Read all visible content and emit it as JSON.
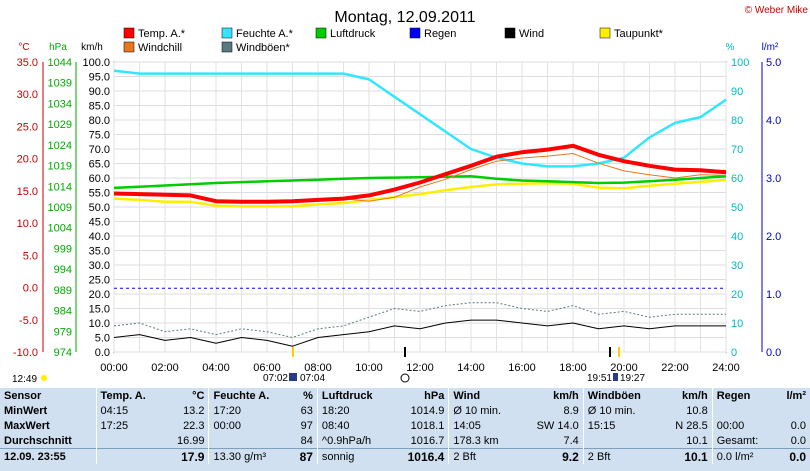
{
  "title": "Montag, 12.09.2011",
  "copyright": "© Weber Mike",
  "legend": [
    {
      "name": "Temp. A.*",
      "color": "#ff0000"
    },
    {
      "name": "Feuchte A.*",
      "color": "#33e6ff"
    },
    {
      "name": "Luftdruck",
      "color": "#00cc00"
    },
    {
      "name": "Regen",
      "color": "#0000ff"
    },
    {
      "name": "Wind",
      "color": "#000000"
    },
    {
      "name": "Taupunkt*",
      "color": "#ffee00"
    },
    {
      "name": "Windchill",
      "color": "#e87820"
    },
    {
      "name": "Windböen*",
      "color": "#5a7a80"
    }
  ],
  "axis_units": {
    "temp": "°C",
    "press": "hPa",
    "wind": "km/h",
    "hum": "%",
    "rain": "l/m²"
  },
  "axis_ticks": {
    "temp": [
      "35.0",
      "30.0",
      "25.0",
      "20.0",
      "15.0",
      "10.0",
      "5.0",
      "0.0",
      "-5.0",
      "-10.0"
    ],
    "press": [
      "1044",
      "1039",
      "1034",
      "1029",
      "1024",
      "1019",
      "1014",
      "1009",
      "1004",
      "999",
      "994",
      "989",
      "984",
      "979",
      "974"
    ],
    "wind": [
      "100.0",
      "95.0",
      "90.0",
      "85.0",
      "80.0",
      "75.0",
      "70.0",
      "65.0",
      "60.0",
      "55.0",
      "50.0",
      "45.0",
      "40.0",
      "35.0",
      "30.0",
      "25.0",
      "20.0",
      "15.0",
      "10.0",
      "5.0",
      "0.0"
    ],
    "hum": [
      "100",
      "90",
      "80",
      "70",
      "60",
      "50",
      "40",
      "30",
      "20",
      "10",
      "0"
    ],
    "rain": [
      "5.0",
      "4.0",
      "3.0",
      "2.0",
      "1.0",
      "0.0"
    ]
  },
  "time_labels": [
    "00:00",
    "02:00",
    "04:00",
    "06:00",
    "08:00",
    "10:00",
    "12:00",
    "14:00",
    "16:00",
    "18:00",
    "20:00",
    "22:00",
    "24:00"
  ],
  "markers": {
    "time_now": "12:49",
    "sunrise": "07:02",
    "sunset": "07:04",
    "other1": "19:51",
    "other2": "19:27"
  },
  "chart_data": {
    "type": "line",
    "title": "Montag, 12.09.2011",
    "x_hours": [
      0,
      1,
      2,
      3,
      4,
      5,
      6,
      7,
      8,
      9,
      10,
      11,
      12,
      13,
      14,
      15,
      16,
      17,
      18,
      19,
      20,
      21,
      22,
      23,
      24
    ],
    "series": [
      {
        "name": "Temp. A.*",
        "axis": "temp",
        "values": [
          14.6,
          14.5,
          14.4,
          14.3,
          13.4,
          13.3,
          13.3,
          13.4,
          13.6,
          13.8,
          14.3,
          15.2,
          16.3,
          17.6,
          18.9,
          20.3,
          21.0,
          21.4,
          22.0,
          20.6,
          19.6,
          18.9,
          18.3,
          18.2,
          17.9
        ]
      },
      {
        "name": "Feuchte A.*",
        "axis": "hum",
        "values": [
          97,
          96,
          96,
          96,
          96,
          96,
          96,
          96,
          96,
          96,
          94,
          88,
          82,
          76,
          70,
          67,
          65,
          64,
          64,
          65,
          67,
          74,
          79,
          81,
          87
        ]
      },
      {
        "name": "Luftdruck",
        "axis": "press",
        "values": [
          1013.6,
          1013.9,
          1014.2,
          1014.5,
          1014.8,
          1015.0,
          1015.2,
          1015.4,
          1015.6,
          1015.8,
          1016.0,
          1016.1,
          1016.2,
          1016.3,
          1016.4,
          1015.8,
          1015.4,
          1015.2,
          1015.0,
          1014.8,
          1014.9,
          1015.2,
          1015.6,
          1016.0,
          1016.4
        ]
      },
      {
        "name": "Taupunkt*",
        "axis": "temp",
        "values": [
          13.8,
          13.6,
          13.3,
          13.3,
          12.7,
          12.6,
          12.6,
          12.6,
          12.9,
          13.1,
          13.6,
          14.0,
          14.5,
          15.1,
          15.6,
          16.0,
          16.1,
          16.2,
          16.1,
          15.5,
          15.4,
          15.8,
          16.1,
          16.4,
          16.7
        ]
      },
      {
        "name": "Windchill",
        "axis": "temp",
        "values": [
          14.6,
          14.5,
          14.4,
          14.3,
          13.4,
          13.3,
          13.3,
          13.4,
          13.6,
          13.8,
          13.4,
          14.0,
          15.6,
          16.8,
          18.3,
          19.6,
          20.1,
          20.4,
          20.8,
          19.3,
          18.1,
          17.5,
          17.0,
          17.5,
          17.4
        ]
      },
      {
        "name": "Wind",
        "axis": "wind",
        "values": [
          5,
          6,
          4,
          5,
          3,
          5,
          4,
          2,
          5,
          6,
          7,
          9,
          8,
          10,
          11,
          11,
          10,
          9,
          10,
          8,
          9,
          8,
          9,
          9,
          9
        ]
      },
      {
        "name": "Windböen*",
        "axis": "wind",
        "values": [
          9,
          10,
          7,
          8,
          6,
          8,
          7,
          5,
          8,
          9,
          12,
          15,
          14,
          16,
          17,
          17,
          15,
          14,
          16,
          13,
          14,
          12,
          13,
          13,
          13
        ]
      }
    ],
    "regen_marks": {
      "axis": "hum",
      "value": 22
    },
    "ylim": {
      "temp": [
        -10,
        35
      ],
      "press": [
        974,
        1044
      ],
      "wind": [
        0,
        100
      ],
      "hum": [
        0,
        100
      ],
      "rain": [
        0,
        5
      ]
    }
  },
  "stats": {
    "header": [
      "Sensor",
      "Temp. A.",
      "°C",
      "Feuchte A.",
      "%",
      "Luftdruck",
      "hPa",
      "Wind",
      "km/h",
      "Windböen",
      "km/h",
      "Regen",
      "l/m²"
    ],
    "rows": [
      [
        "MinWert",
        "04:15",
        "13.2",
        "17:20",
        "63",
        "18:20",
        "1014.9",
        "Ø 10 min.",
        "8.9",
        "Ø 10 min.",
        "10.8",
        "",
        ""
      ],
      [
        "MaxWert",
        "17:25",
        "22.3",
        "00:00",
        "97",
        "08:40",
        "1018.1",
        "14:05",
        "SW 14.0",
        "15:15",
        "N 28.5",
        "00:00",
        "0.0"
      ],
      [
        "Durchschnitt",
        "",
        "16.99",
        "",
        "84",
        "^0.9hPa/h",
        "1016.7",
        "178.3 km",
        "7.4",
        "",
        "10.1",
        "Gesamt:",
        "0.0"
      ],
      [
        "12.09.  23:55",
        "",
        "17.9",
        "13.30 g/m³",
        "87",
        "sonnig",
        "1016.4",
        "2 Bft",
        "9.2",
        "2 Bft",
        "10.1",
        "0.0 l/m²",
        "0.0"
      ]
    ]
  }
}
